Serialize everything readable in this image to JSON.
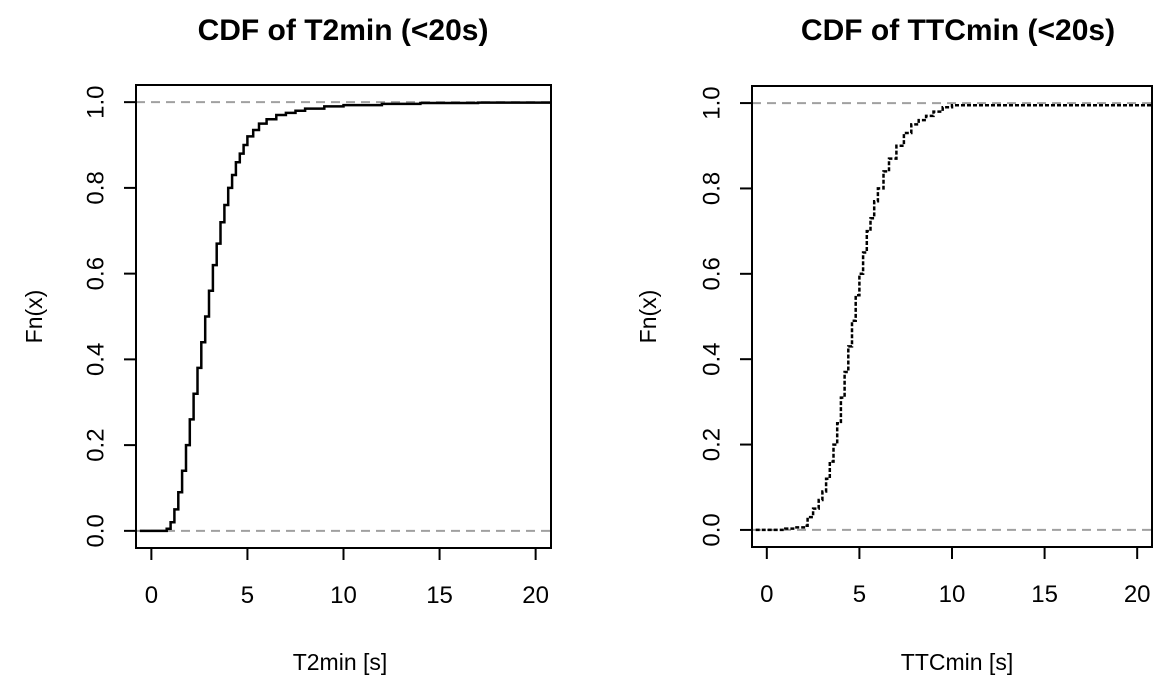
{
  "chart_data": [
    {
      "type": "line",
      "step": true,
      "title": "CDF of T2min (<20s)",
      "xlabel": "T2min [s]",
      "ylabel": "Fn(x)",
      "xlim": [
        -0.8,
        20.8
      ],
      "ylim": [
        -0.04,
        1.04
      ],
      "xticks": [
        0,
        5,
        10,
        15,
        20
      ],
      "yticks": [
        0.0,
        0.2,
        0.4,
        0.6,
        0.8,
        1.0
      ],
      "xtick_labels": [
        "0",
        "5",
        "10",
        "15",
        "20"
      ],
      "ytick_labels": [
        "0.0",
        "0.2",
        "0.4",
        "0.6",
        "0.8",
        "1.0"
      ],
      "reference_lines": [
        0,
        1
      ],
      "line_style": "solid",
      "series": [
        {
          "x": [
            -0.6,
            0.5,
            0.8,
            1.0,
            1.2,
            1.4,
            1.6,
            1.8,
            2.0,
            2.2,
            2.4,
            2.6,
            2.8,
            3.0,
            3.2,
            3.4,
            3.6,
            3.8,
            4.0,
            4.2,
            4.4,
            4.6,
            4.8,
            5.0,
            5.3,
            5.6,
            6.0,
            6.5,
            7.0,
            7.5,
            8.0,
            9.0,
            10.0,
            12.0,
            14.0,
            17.0,
            20.8
          ],
          "y": [
            0.0,
            0.0,
            0.005,
            0.02,
            0.05,
            0.09,
            0.14,
            0.2,
            0.26,
            0.32,
            0.38,
            0.44,
            0.5,
            0.56,
            0.62,
            0.67,
            0.72,
            0.76,
            0.8,
            0.83,
            0.86,
            0.88,
            0.9,
            0.92,
            0.935,
            0.95,
            0.96,
            0.97,
            0.975,
            0.98,
            0.985,
            0.99,
            0.993,
            0.996,
            0.998,
            0.999,
            0.999
          ]
        }
      ]
    },
    {
      "type": "line",
      "step": true,
      "title": "CDF of TTCmin (<20s)",
      "xlabel": "TTCmin [s]",
      "ylabel": "Fn(x)",
      "xlim": [
        -0.8,
        20.8
      ],
      "ylim": [
        -0.04,
        1.04
      ],
      "xticks": [
        0,
        5,
        10,
        15,
        20
      ],
      "yticks": [
        0.0,
        0.2,
        0.4,
        0.6,
        0.8,
        1.0
      ],
      "xtick_labels": [
        "0",
        "5",
        "10",
        "15",
        "20"
      ],
      "ytick_labels": [
        "0.0",
        "0.2",
        "0.4",
        "0.6",
        "0.8",
        "1.0"
      ],
      "reference_lines": [
        0,
        1
      ],
      "line_style": "dotted",
      "series": [
        {
          "x": [
            -0.6,
            1.0,
            1.5,
            2.0,
            2.2,
            2.5,
            2.8,
            3.0,
            3.2,
            3.4,
            3.6,
            3.8,
            4.0,
            4.2,
            4.4,
            4.6,
            4.8,
            5.0,
            5.2,
            5.4,
            5.6,
            5.8,
            6.0,
            6.3,
            6.6,
            7.0,
            7.4,
            7.8,
            8.2,
            8.6,
            9.0,
            9.5,
            10.0,
            20.8
          ],
          "y": [
            0.0,
            0.003,
            0.006,
            0.01,
            0.03,
            0.05,
            0.07,
            0.09,
            0.12,
            0.16,
            0.2,
            0.25,
            0.31,
            0.37,
            0.43,
            0.49,
            0.55,
            0.6,
            0.65,
            0.7,
            0.73,
            0.77,
            0.8,
            0.84,
            0.87,
            0.9,
            0.93,
            0.95,
            0.96,
            0.97,
            0.98,
            0.99,
            0.995,
            0.995
          ]
        }
      ]
    }
  ]
}
